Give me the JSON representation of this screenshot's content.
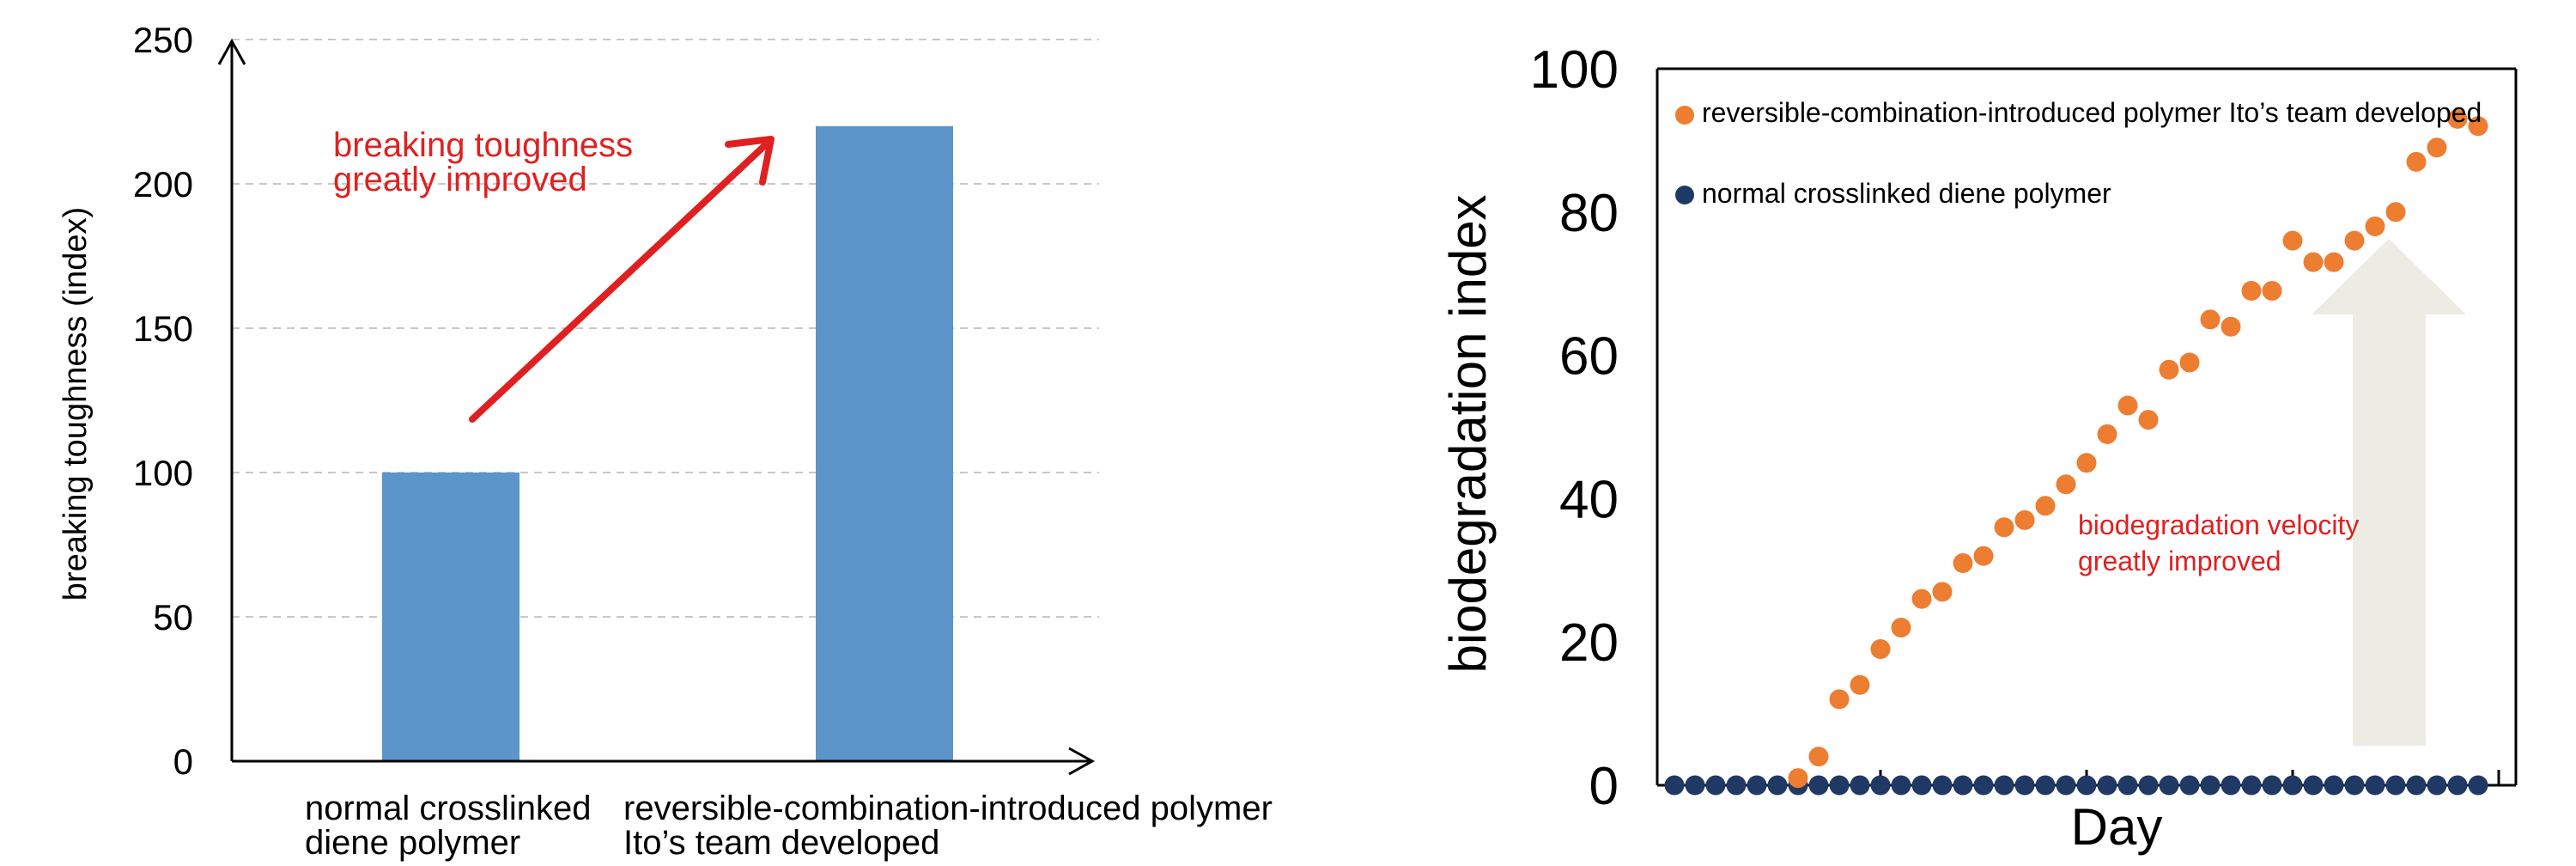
{
  "chart_data": [
    {
      "type": "bar",
      "title": "",
      "xlabel": "",
      "ylabel": "breaking toughness (index)",
      "ylim": [
        0,
        250
      ],
      "yticks": [
        0,
        50,
        100,
        150,
        200,
        250
      ],
      "grid": true,
      "categories": [
        [
          "normal crosslinked",
          "diene polymer"
        ],
        [
          "reversible-combination-introduced polymer",
          "Ito’s team developed"
        ]
      ],
      "values": [
        100,
        220
      ],
      "bar_color": "#5B95C9",
      "annotation": {
        "lines": [
          "breaking toughness",
          "greatly improved"
        ],
        "color": "#E02020"
      }
    },
    {
      "type": "scatter",
      "title": "",
      "xlabel": "Day",
      "ylabel": "biodegradation index",
      "ylim": [
        0,
        100
      ],
      "yticks": [
        0,
        20,
        40,
        60,
        80,
        100
      ],
      "xlim": [
        0,
        42
      ],
      "x_tick_marks": [
        10,
        20,
        30,
        40
      ],
      "x_tick_labels_shown": false,
      "grid": false,
      "legend_position": "top-left",
      "series": [
        {
          "name": "reversible-combination-introduced polymer Ito’s team developed",
          "color": "#ED7D31",
          "points": [
            [
              6,
              1
            ],
            [
              7,
              4
            ],
            [
              8,
              12
            ],
            [
              9,
              14
            ],
            [
              10,
              19
            ],
            [
              11,
              22
            ],
            [
              12,
              26
            ],
            [
              13,
              27
            ],
            [
              14,
              31
            ],
            [
              15,
              32
            ],
            [
              16,
              36
            ],
            [
              17,
              37
            ],
            [
              18,
              39
            ],
            [
              19,
              42
            ],
            [
              20,
              45
            ],
            [
              21,
              49
            ],
            [
              22,
              53
            ],
            [
              23,
              51
            ],
            [
              24,
              58
            ],
            [
              25,
              59
            ],
            [
              26,
              65
            ],
            [
              27,
              64
            ],
            [
              28,
              69
            ],
            [
              29,
              69
            ],
            [
              30,
              76
            ],
            [
              31,
              73
            ],
            [
              32,
              73
            ],
            [
              33,
              76
            ],
            [
              34,
              78
            ],
            [
              35,
              80
            ],
            [
              36,
              87
            ],
            [
              37,
              89
            ],
            [
              38,
              93
            ],
            [
              39,
              92
            ]
          ]
        },
        {
          "name": "normal crosslinked diene polymer",
          "color": "#203864",
          "points": [
            [
              0,
              0
            ],
            [
              1,
              0
            ],
            [
              2,
              0
            ],
            [
              3,
              0
            ],
            [
              4,
              0
            ],
            [
              5,
              0
            ],
            [
              6,
              0
            ],
            [
              7,
              0
            ],
            [
              8,
              0
            ],
            [
              9,
              0
            ],
            [
              10,
              0
            ],
            [
              11,
              0
            ],
            [
              12,
              0
            ],
            [
              13,
              0
            ],
            [
              14,
              0
            ],
            [
              15,
              0
            ],
            [
              16,
              0
            ],
            [
              17,
              0
            ],
            [
              18,
              0
            ],
            [
              19,
              0
            ],
            [
              20,
              0
            ],
            [
              21,
              0
            ],
            [
              22,
              0
            ],
            [
              23,
              0
            ],
            [
              24,
              0
            ],
            [
              25,
              0
            ],
            [
              26,
              0
            ],
            [
              27,
              0
            ],
            [
              28,
              0
            ],
            [
              29,
              0
            ],
            [
              30,
              0
            ],
            [
              31,
              0
            ],
            [
              32,
              0
            ],
            [
              33,
              0
            ],
            [
              34,
              0
            ],
            [
              35,
              0
            ],
            [
              36,
              0
            ],
            [
              37,
              0
            ],
            [
              38,
              0
            ],
            [
              39,
              0
            ]
          ]
        }
      ],
      "annotation": {
        "lines": [
          "biodegradation velocity",
          "greatly improved"
        ],
        "color": "#E02020"
      },
      "arrow_color": "#EDECE4"
    }
  ]
}
